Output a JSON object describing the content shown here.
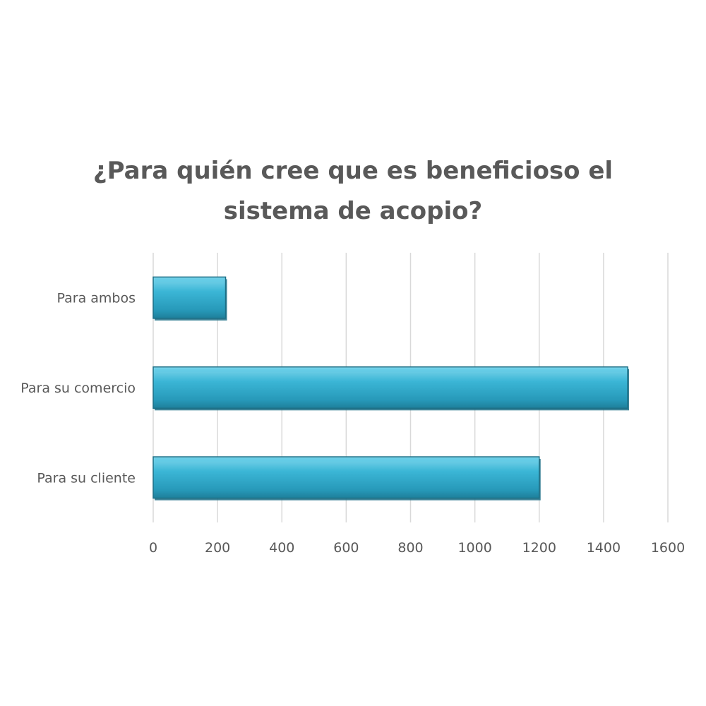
{
  "chart_data": {
    "type": "bar",
    "orientation": "horizontal",
    "title_lines": [
      "¿Para quién cree que es beneficioso el",
      "sistema de acopio?"
    ],
    "categories": [
      "Para su cliente",
      "Para su comercio",
      "Para ambos"
    ],
    "values": [
      1200,
      1475,
      225
    ],
    "xlim": [
      0,
      1600
    ],
    "x_ticks": [
      "0",
      "200",
      "400",
      "600",
      "800",
      "1000",
      "1200",
      "1400",
      "1600"
    ],
    "grid": "vertical",
    "legend": "none",
    "colors": {
      "bar_fill": "#2aa6c7",
      "bar_light": "#5fcbe6",
      "bar_dark": "#1c6f86",
      "grid": "#d9d9d9",
      "text": "#595959"
    }
  }
}
